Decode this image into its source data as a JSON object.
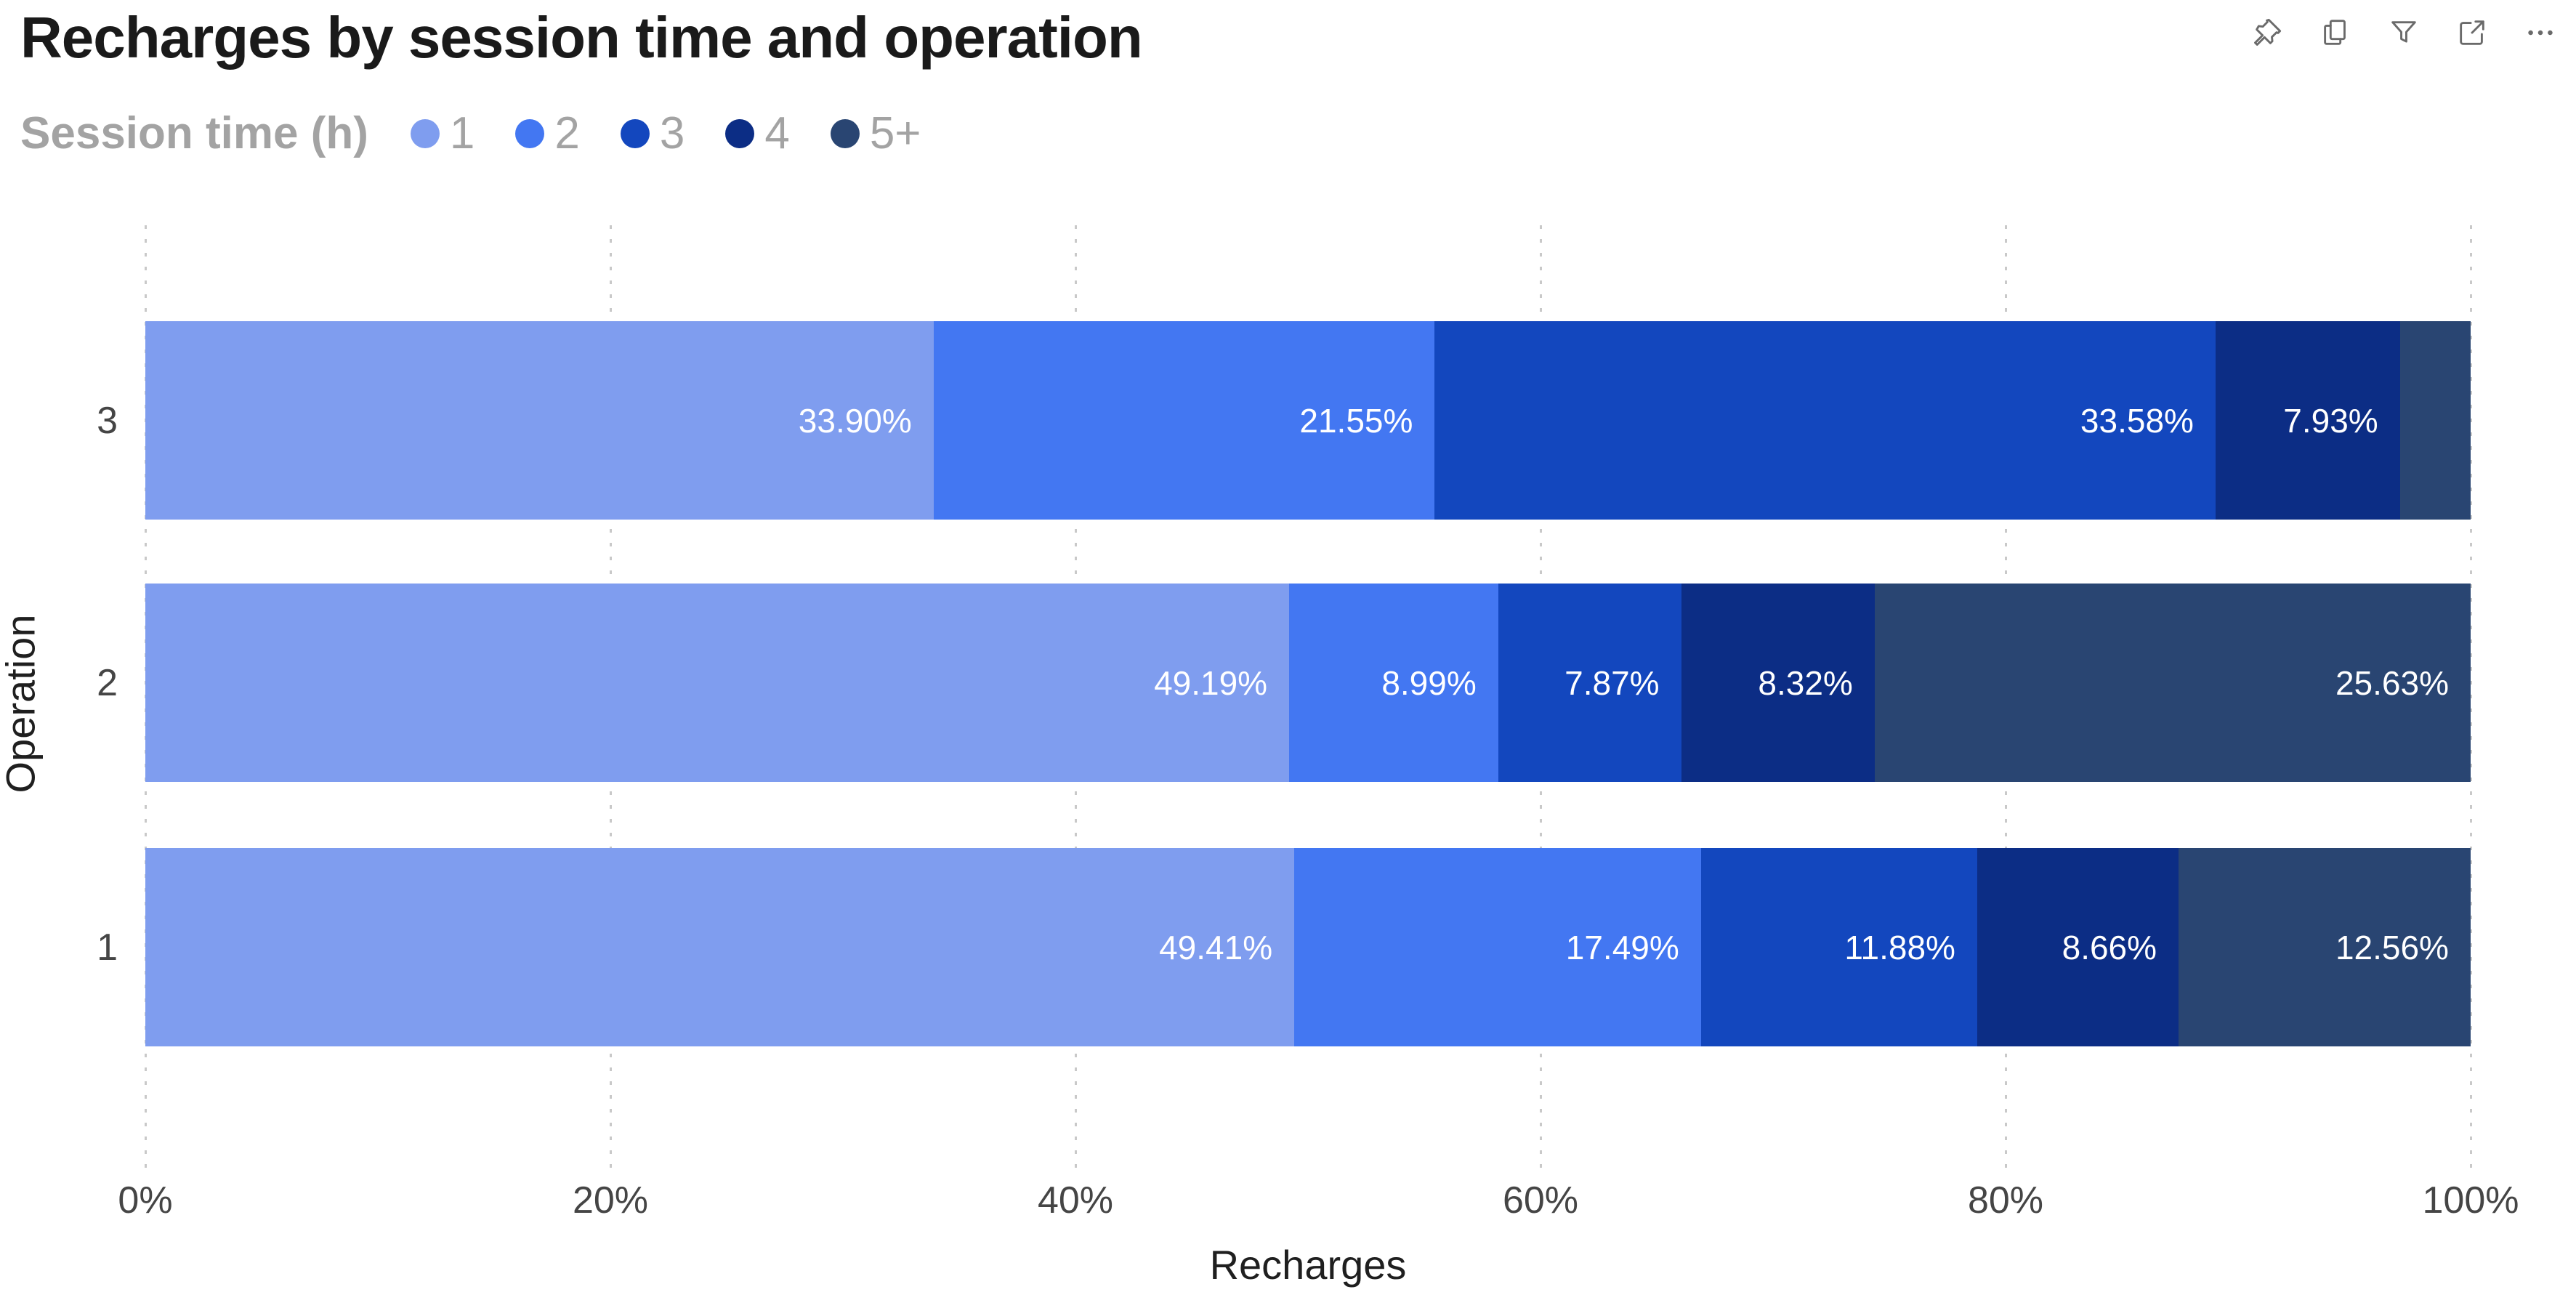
{
  "header": {
    "title": "Recharges by session time and operation",
    "icons": [
      "pin",
      "copy",
      "filter",
      "focus-mode",
      "more-options"
    ]
  },
  "legend": {
    "title": "Session time (h)",
    "items": [
      {
        "label": "1",
        "color": "#7F9DEF"
      },
      {
        "label": "2",
        "color": "#4377F2"
      },
      {
        "label": "3",
        "color": "#1347BE"
      },
      {
        "label": "4",
        "color": "#0C2D85"
      },
      {
        "label": "5+",
        "color": "#294572"
      }
    ]
  },
  "chart_data": {
    "type": "bar",
    "orientation": "horizontal",
    "stacked": true,
    "percent_stacked": true,
    "title": "Recharges by session time and operation",
    "xlabel": "Recharges",
    "ylabel": "Operation",
    "legend_title": "Session time (h)",
    "legend_position": "top",
    "grid": "vertical-dotted",
    "categories": [
      "3",
      "2",
      "1"
    ],
    "series": [
      {
        "name": "1",
        "color": "#7F9DEF",
        "values": [
          33.9,
          49.19,
          49.41
        ]
      },
      {
        "name": "2",
        "color": "#4377F2",
        "values": [
          21.55,
          8.99,
          17.49
        ]
      },
      {
        "name": "3",
        "color": "#1347BE",
        "values": [
          33.58,
          7.87,
          11.88
        ]
      },
      {
        "name": "4",
        "color": "#0C2D85",
        "values": [
          7.93,
          8.32,
          8.66
        ]
      },
      {
        "name": "5+",
        "color": "#294572",
        "values": [
          3.04,
          25.63,
          12.56
        ]
      }
    ],
    "labels": [
      [
        "33.90%",
        "21.55%",
        "33.58%",
        "7.93%",
        ""
      ],
      [
        "49.19%",
        "8.99%",
        "7.87%",
        "8.32%",
        "25.63%"
      ],
      [
        "49.41%",
        "17.49%",
        "11.88%",
        "8.66%",
        "12.56%"
      ]
    ],
    "x_ticks": [
      "0%",
      "20%",
      "40%",
      "60%",
      "80%",
      "100%"
    ],
    "x_tick_values": [
      0,
      20,
      40,
      60,
      80,
      100
    ],
    "xlim": [
      0,
      100
    ]
  }
}
